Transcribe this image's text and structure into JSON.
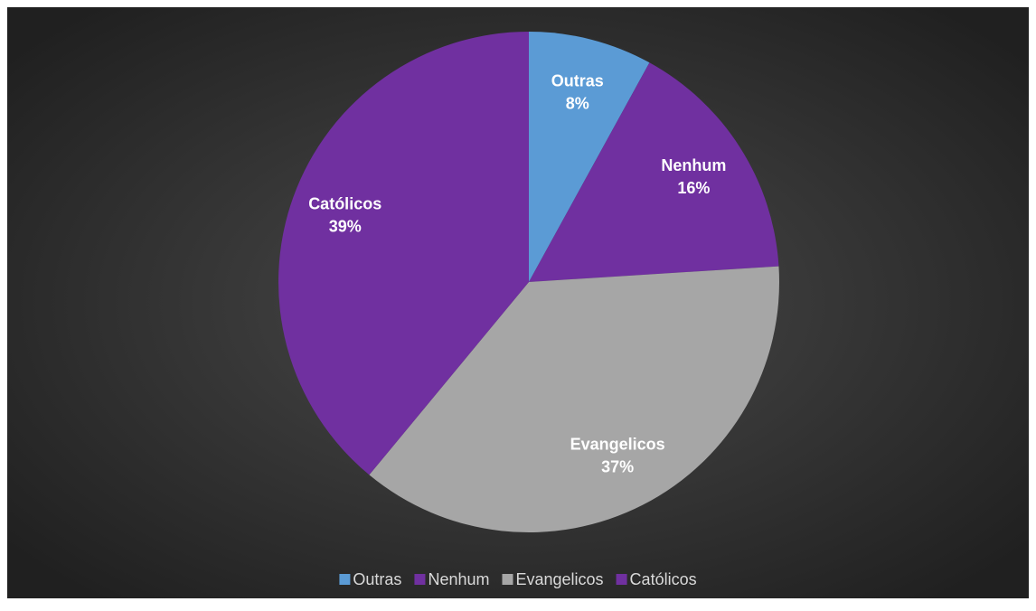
{
  "chart_data": {
    "type": "pie",
    "categories": [
      "Outras",
      "Nenhum",
      "Evangelicos",
      "Católicos"
    ],
    "values": [
      8,
      16,
      37,
      39
    ],
    "value_labels": [
      "8%",
      "16%",
      "37%",
      "39%"
    ],
    "colors": [
      "#5b9bd5",
      "#7030a0",
      "#a6a6a6",
      "#7030a0"
    ],
    "legend": "bottom"
  }
}
